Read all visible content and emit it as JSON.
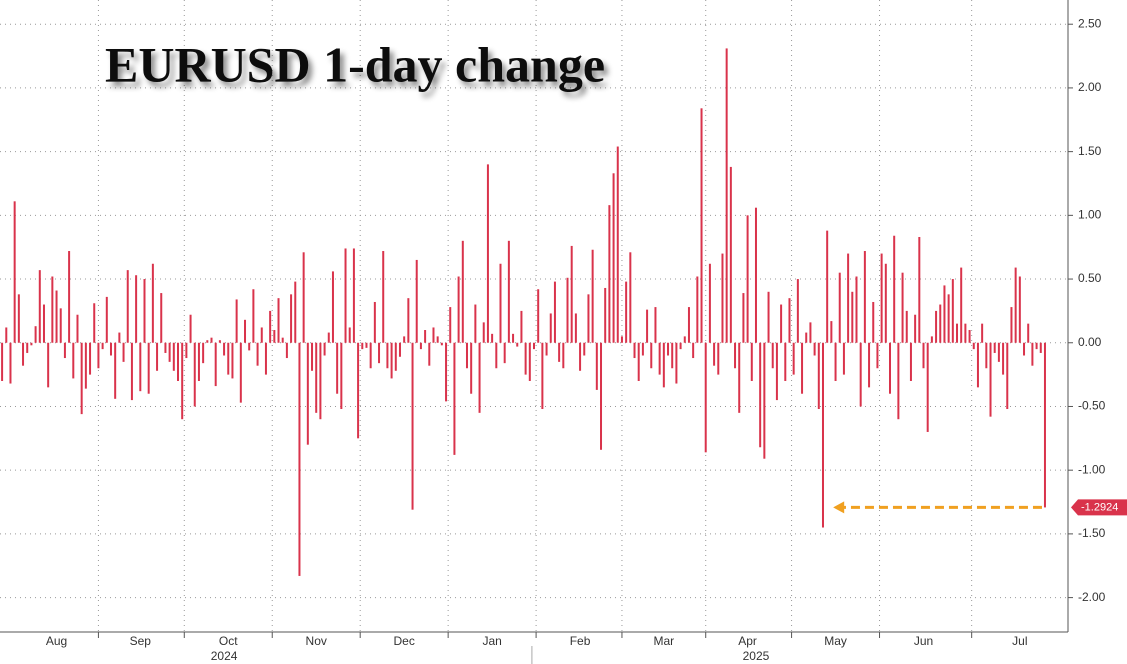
{
  "chart_data": {
    "type": "bar",
    "title": "EURUSD 1-day change",
    "values": [
      -0.3,
      0.12,
      -0.32,
      1.11,
      0.38,
      -0.18,
      -0.08,
      -0.02,
      0.13,
      0.57,
      0.3,
      -0.35,
      0.52,
      0.41,
      0.27,
      -0.12,
      0.72,
      -0.28,
      0.22,
      -0.56,
      -0.36,
      -0.25,
      0.31,
      -0.2,
      -0.05,
      0.36,
      -0.1,
      -0.44,
      0.08,
      -0.15,
      0.57,
      -0.45,
      0.53,
      -0.38,
      0.5,
      -0.4,
      0.62,
      -0.22,
      0.39,
      -0.08,
      -0.15,
      -0.22,
      -0.3,
      -0.6,
      -0.12,
      0.22,
      -0.5,
      -0.3,
      -0.16,
      0.02,
      0.04,
      -0.34,
      0.02,
      -0.1,
      -0.25,
      -0.28,
      0.34,
      -0.47,
      0.18,
      -0.06,
      0.42,
      -0.18,
      0.12,
      -0.25,
      0.25,
      0.1,
      0.35,
      0.04,
      -0.12,
      0.38,
      0.48,
      -1.83,
      0.71,
      -0.8,
      -0.22,
      -0.55,
      -0.6,
      -0.1,
      0.08,
      0.56,
      -0.4,
      -0.52,
      0.74,
      0.12,
      0.74,
      -0.75,
      -0.05,
      -0.04,
      -0.2,
      0.32,
      -0.16,
      0.72,
      -0.2,
      -0.28,
      -0.22,
      -0.11,
      0.05,
      0.35,
      -1.31,
      0.65,
      -0.05,
      0.1,
      -0.18,
      0.12,
      0.05,
      -0.02,
      -0.46,
      0.28,
      -0.88,
      0.52,
      0.8,
      -0.2,
      -0.4,
      0.3,
      -0.55,
      0.16,
      1.4,
      0.07,
      -0.2,
      0.62,
      -0.16,
      0.8,
      0.07,
      -0.03,
      0.25,
      -0.25,
      -0.3,
      -0.05,
      0.42,
      -0.52,
      -0.1,
      0.23,
      0.48,
      -0.15,
      -0.2,
      0.51,
      0.76,
      0.23,
      -0.22,
      -0.1,
      0.38,
      0.73,
      -0.37,
      -0.84,
      0.43,
      1.08,
      1.33,
      1.54,
      0.05,
      0.48,
      0.71,
      -0.12,
      -0.3,
      -0.1,
      0.26,
      -0.2,
      0.28,
      -0.25,
      -0.35,
      -0.1,
      -0.2,
      -0.32,
      -0.05,
      0.05,
      0.28,
      -0.12,
      0.52,
      1.84,
      -0.86,
      0.62,
      -0.18,
      -0.25,
      0.7,
      2.31,
      1.38,
      -0.2,
      -0.55,
      0.39,
      1.0,
      -0.3,
      1.06,
      -0.82,
      -0.91,
      0.4,
      -0.2,
      -0.45,
      0.3,
      -0.3,
      0.35,
      -0.25,
      0.5,
      -0.4,
      0.08,
      0.16,
      -0.1,
      -0.52,
      -1.45,
      0.88,
      0.17,
      -0.3,
      0.55,
      -0.25,
      0.7,
      0.4,
      0.52,
      -0.5,
      0.72,
      -0.35,
      0.32,
      -0.2,
      0.7,
      0.62,
      -0.4,
      0.84,
      -0.6,
      0.55,
      0.25,
      -0.3,
      0.22,
      0.83,
      -0.2,
      -0.7,
      0.05,
      0.25,
      0.3,
      0.45,
      0.38,
      0.5,
      0.15,
      0.59,
      0.15,
      0.1,
      -0.05,
      -0.35,
      0.15,
      -0.2,
      -0.58,
      -0.08,
      -0.15,
      -0.25,
      -0.52,
      0.28,
      0.59,
      0.52,
      -0.1,
      0.15,
      -0.18,
      -0.05,
      -0.08,
      -1.2924
    ],
    "color": "#d9334b",
    "xlim": [
      -0.5,
      254.5
    ],
    "xticks": [
      {
        "value": 13,
        "label": "Aug"
      },
      {
        "value": 33,
        "label": "Sep"
      },
      {
        "value": 54,
        "label": "Oct"
      },
      {
        "value": 75,
        "label": "Nov"
      },
      {
        "value": 96,
        "label": "Dec"
      },
      {
        "value": 117,
        "label": "Jan"
      },
      {
        "value": 138,
        "label": "Feb"
      },
      {
        "value": 158,
        "label": "Mar"
      },
      {
        "value": 178,
        "label": "Apr"
      },
      {
        "value": 199,
        "label": "May"
      },
      {
        "value": 220,
        "label": "Jun"
      },
      {
        "value": 243,
        "label": "Jul"
      }
    ],
    "year_ticks": [
      {
        "value": 53,
        "label": "2024"
      },
      {
        "value": 180,
        "label": "2025"
      }
    ],
    "ylim": [
      -2.27,
      2.69
    ],
    "yticks": [
      {
        "value": 2.5,
        "label": "2.50"
      },
      {
        "value": 2,
        "label": "2.00"
      },
      {
        "value": 1.5,
        "label": "1.50"
      },
      {
        "value": 1,
        "label": "1.00"
      },
      {
        "value": 0.5,
        "label": "0.50"
      },
      {
        "value": 0,
        "label": "0.00"
      },
      {
        "value": -0.5,
        "label": "-0.50"
      },
      {
        "value": -1,
        "label": "-1.00"
      },
      {
        "value": -1.5,
        "label": "-1.50"
      },
      {
        "value": -2,
        "label": "-2.00"
      }
    ],
    "grid": true
  }
}
